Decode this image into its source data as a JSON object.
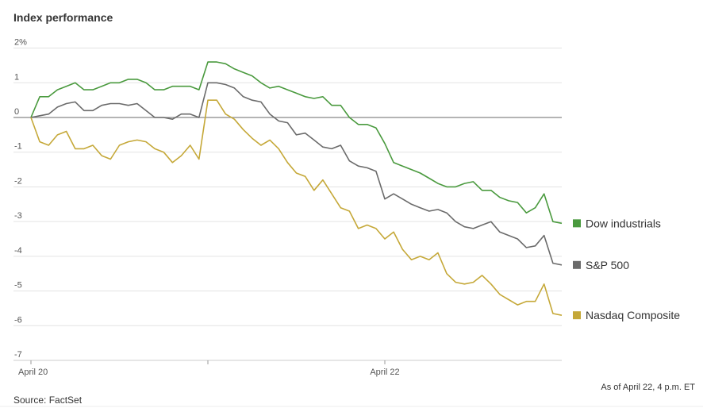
{
  "chart_data": {
    "type": "line",
    "title": "Index performance",
    "source": "Source: FactSet",
    "note": "As of April 22, 4 p.m. ET",
    "x": [
      0,
      0.05,
      0.1,
      0.15,
      0.2,
      0.25,
      0.3,
      0.35,
      0.4,
      0.45,
      0.5,
      0.55,
      0.6,
      0.65,
      0.7,
      0.75,
      0.8,
      0.85,
      0.9,
      0.95,
      1,
      1.05,
      1.1,
      1.15,
      1.2,
      1.25,
      1.3,
      1.35,
      1.4,
      1.45,
      1.5,
      1.55,
      1.6,
      1.65,
      1.7,
      1.75,
      1.8,
      1.85,
      1.9,
      1.95,
      2,
      2.05,
      2.1,
      2.15,
      2.2,
      2.25,
      2.3,
      2.35,
      2.4,
      2.45,
      2.5,
      2.55,
      2.6,
      2.65,
      2.7,
      2.75,
      2.8,
      2.85,
      2.9,
      2.95,
      3
    ],
    "xlim": [
      0,
      3
    ],
    "xticks": [
      {
        "value": 0,
        "label": "April 20"
      },
      {
        "value": 1,
        "label": null
      },
      {
        "value": 2,
        "label": "April 22"
      }
    ],
    "ylim": [
      -7,
      2
    ],
    "yticks": [
      {
        "value": 2,
        "label": "2%"
      },
      1,
      0,
      -1,
      -2,
      -3,
      -4,
      -5,
      -6,
      -7
    ],
    "grid": true,
    "series": [
      {
        "name": "Dow industrials",
        "color": "#4a9a3e",
        "values": [
          0,
          0.6,
          0.6,
          0.8,
          0.9,
          1.0,
          0.8,
          0.8,
          0.9,
          1.0,
          1.0,
          1.1,
          1.1,
          1.0,
          0.8,
          0.8,
          0.9,
          0.9,
          0.9,
          0.8,
          1.6,
          1.6,
          1.55,
          1.4,
          1.3,
          1.2,
          1.0,
          0.85,
          0.9,
          0.8,
          0.7,
          0.6,
          0.55,
          0.6,
          0.35,
          0.35,
          0.0,
          -0.2,
          -0.2,
          -0.3,
          -0.75,
          -1.3,
          -1.4,
          -1.5,
          -1.6,
          -1.75,
          -1.9,
          -2.0,
          -2.0,
          -1.9,
          -1.85,
          -2.1,
          -2.1,
          -2.3,
          -2.4,
          -2.45,
          -2.75,
          -2.6,
          -2.2,
          -3.0,
          -3.05
        ]
      },
      {
        "name": "S&P 500",
        "color": "#6b6b6b",
        "values": [
          0,
          0.05,
          0.1,
          0.3,
          0.4,
          0.45,
          0.2,
          0.2,
          0.35,
          0.4,
          0.4,
          0.35,
          0.4,
          0.2,
          0.0,
          0.0,
          -0.05,
          0.1,
          0.1,
          0.0,
          1.0,
          1.0,
          0.95,
          0.85,
          0.6,
          0.5,
          0.45,
          0.1,
          -0.1,
          -0.15,
          -0.5,
          -0.45,
          -0.65,
          -0.85,
          -0.9,
          -0.8,
          -1.25,
          -1.4,
          -1.45,
          -1.55,
          -2.35,
          -2.2,
          -2.35,
          -2.5,
          -2.6,
          -2.7,
          -2.65,
          -2.75,
          -3.0,
          -3.15,
          -3.2,
          -3.1,
          -3.0,
          -3.3,
          -3.4,
          -3.5,
          -3.75,
          -3.7,
          -3.4,
          -4.2,
          -4.25
        ]
      },
      {
        "name": "Nasdaq Composite",
        "color": "#c5a838",
        "values": [
          0,
          -0.7,
          -0.8,
          -0.5,
          -0.4,
          -0.9,
          -0.9,
          -0.8,
          -1.1,
          -1.2,
          -0.8,
          -0.7,
          -0.65,
          -0.7,
          -0.9,
          -1.0,
          -1.3,
          -1.1,
          -0.8,
          -1.2,
          0.5,
          0.5,
          0.1,
          -0.05,
          -0.35,
          -0.6,
          -0.8,
          -0.65,
          -0.9,
          -1.3,
          -1.6,
          -1.7,
          -2.1,
          -1.8,
          -2.2,
          -2.6,
          -2.7,
          -3.2,
          -3.1,
          -3.2,
          -3.5,
          -3.3,
          -3.8,
          -4.1,
          -4.0,
          -4.1,
          -3.9,
          -4.5,
          -4.75,
          -4.8,
          -4.75,
          -4.55,
          -4.8,
          -5.1,
          -5.25,
          -5.4,
          -5.3,
          -5.3,
          -4.8,
          -5.65,
          -5.7
        ]
      }
    ]
  }
}
